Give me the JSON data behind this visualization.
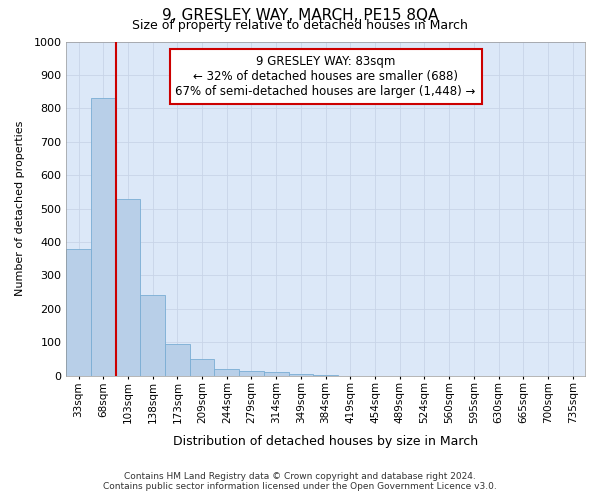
{
  "title": "9, GRESLEY WAY, MARCH, PE15 8QA",
  "subtitle": "Size of property relative to detached houses in March",
  "xlabel": "Distribution of detached houses by size in March",
  "ylabel": "Number of detached properties",
  "footnote1": "Contains HM Land Registry data © Crown copyright and database right 2024.",
  "footnote2": "Contains public sector information licensed under the Open Government Licence v3.0.",
  "annotation_line1": "9 GRESLEY WAY: 83sqm",
  "annotation_line2": "← 32% of detached houses are smaller (688)",
  "annotation_line3": "67% of semi-detached houses are larger (1,448) →",
  "bar_color": "#b8cfe8",
  "bar_edge_color": "#7aadd4",
  "vline_color": "#cc0000",
  "annotation_box_edge_color": "#cc0000",
  "grid_color": "#c8d4e8",
  "bg_color": "#dce8f8",
  "fig_bg_color": "#ffffff",
  "categories": [
    "33sqm",
    "68sqm",
    "103sqm",
    "138sqm",
    "173sqm",
    "209sqm",
    "244sqm",
    "279sqm",
    "314sqm",
    "349sqm",
    "384sqm",
    "419sqm",
    "454sqm",
    "489sqm",
    "524sqm",
    "560sqm",
    "595sqm",
    "630sqm",
    "665sqm",
    "700sqm",
    "735sqm"
  ],
  "values": [
    380,
    830,
    530,
    240,
    95,
    50,
    20,
    15,
    10,
    5,
    3,
    0,
    0,
    0,
    0,
    0,
    0,
    0,
    0,
    0,
    0
  ],
  "vline_x": 1.5,
  "ylim": [
    0,
    1000
  ],
  "yticks": [
    0,
    100,
    200,
    300,
    400,
    500,
    600,
    700,
    800,
    900,
    1000
  ],
  "title_fontsize": 11,
  "subtitle_fontsize": 9,
  "annotation_fontsize": 8.5,
  "ylabel_fontsize": 8,
  "xlabel_fontsize": 9,
  "tick_fontsize": 8,
  "xtick_fontsize": 7.5,
  "footnote_fontsize": 6.5
}
